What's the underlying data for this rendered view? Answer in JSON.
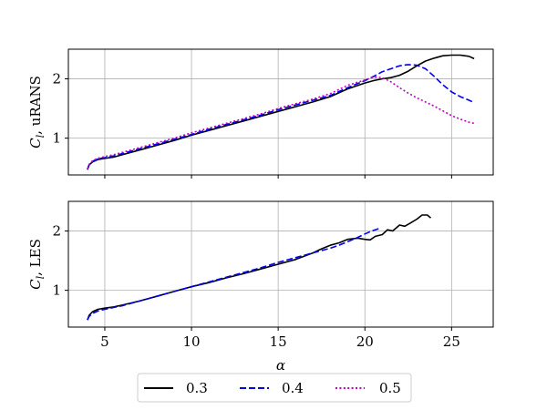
{
  "chart_data": [
    {
      "type": "line",
      "title": "",
      "xlabel": "",
      "ylabel_main": "C",
      "ylabel_sub": "l",
      "ylabel_rest": ", uRANS",
      "xlim": [
        2.9,
        27.4
      ],
      "ylim": [
        0.38,
        2.5
      ],
      "xticks": [
        5,
        10,
        15,
        20,
        25
      ],
      "xtick_labels_visible": false,
      "yticks": [
        1,
        2
      ],
      "ytick_labels": [
        "1",
        "2"
      ],
      "grid": true,
      "series": [
        {
          "name": "0.3",
          "color": "#000000",
          "dash": "solid",
          "x": [
            4.0,
            4.1,
            4.3,
            4.6,
            5.0,
            5.5,
            6.0,
            7.0,
            8.0,
            9.0,
            10.0,
            11.0,
            12.0,
            13.0,
            14.0,
            15.0,
            16.0,
            17.0,
            18.0,
            19.0,
            20.0,
            20.5,
            21.0,
            21.5,
            22.0,
            22.5,
            23.0,
            23.5,
            24.0,
            24.5,
            25.0,
            25.5,
            26.0,
            26.3
          ],
          "y": [
            0.47,
            0.55,
            0.6,
            0.64,
            0.66,
            0.68,
            0.72,
            0.8,
            0.88,
            0.96,
            1.05,
            1.13,
            1.21,
            1.29,
            1.37,
            1.45,
            1.53,
            1.61,
            1.7,
            1.83,
            1.93,
            1.97,
            2.0,
            2.02,
            2.06,
            2.13,
            2.22,
            2.3,
            2.35,
            2.39,
            2.4,
            2.4,
            2.38,
            2.34
          ]
        },
        {
          "name": "0.4",
          "color": "#0000ee",
          "dash": "dashed",
          "x": [
            4.0,
            4.1,
            4.3,
            4.6,
            5.0,
            5.5,
            6.0,
            7.0,
            8.0,
            9.0,
            10.0,
            11.0,
            12.0,
            13.0,
            14.0,
            15.0,
            16.0,
            17.0,
            18.0,
            19.0,
            20.0,
            20.5,
            21.0,
            21.5,
            22.0,
            22.5,
            23.0,
            23.5,
            24.0,
            24.5,
            25.0,
            25.5,
            26.0,
            26.3
          ],
          "y": [
            0.47,
            0.55,
            0.61,
            0.65,
            0.67,
            0.7,
            0.74,
            0.82,
            0.9,
            0.98,
            1.06,
            1.15,
            1.23,
            1.31,
            1.39,
            1.48,
            1.56,
            1.64,
            1.72,
            1.85,
            1.97,
            2.04,
            2.12,
            2.17,
            2.22,
            2.24,
            2.23,
            2.17,
            2.04,
            1.9,
            1.78,
            1.7,
            1.64,
            1.6
          ]
        },
        {
          "name": "0.5",
          "color": "#bf00bf",
          "dash": "dotted",
          "x": [
            4.0,
            4.1,
            4.3,
            4.6,
            5.0,
            5.5,
            6.0,
            7.0,
            8.0,
            9.0,
            10.0,
            11.0,
            12.0,
            13.0,
            14.0,
            15.0,
            16.0,
            17.0,
            18.0,
            19.0,
            20.0,
            20.5,
            21.0,
            21.5,
            22.0,
            22.5,
            23.0,
            24.0,
            25.0,
            25.5,
            26.0,
            26.3
          ],
          "y": [
            0.48,
            0.56,
            0.62,
            0.66,
            0.69,
            0.72,
            0.76,
            0.84,
            0.92,
            1.0,
            1.09,
            1.17,
            1.25,
            1.33,
            1.41,
            1.5,
            1.58,
            1.66,
            1.75,
            1.89,
            1.98,
            2.03,
            2.02,
            1.95,
            1.85,
            1.76,
            1.68,
            1.54,
            1.38,
            1.32,
            1.27,
            1.25
          ]
        }
      ]
    },
    {
      "type": "line",
      "title": "",
      "xlabel": "α",
      "ylabel_main": "C",
      "ylabel_sub": "l",
      "ylabel_rest": ", LES",
      "xlim": [
        2.9,
        27.4
      ],
      "ylim": [
        0.38,
        2.5
      ],
      "xticks": [
        5,
        10,
        15,
        20,
        25
      ],
      "xtick_labels": [
        "5",
        "10",
        "15",
        "20",
        "25"
      ],
      "xtick_labels_visible": true,
      "yticks": [
        1,
        2
      ],
      "ytick_labels": [
        "1",
        "2"
      ],
      "grid": true,
      "series": [
        {
          "name": "0.3",
          "color": "#000000",
          "dash": "solid",
          "x": [
            4.0,
            4.1,
            4.3,
            4.6,
            5.0,
            5.5,
            6.0,
            7.0,
            8.0,
            9.0,
            10.0,
            11.0,
            12.0,
            13.0,
            14.0,
            15.0,
            16.0,
            17.0,
            17.5,
            18.0,
            18.5,
            19.0,
            19.3,
            19.6,
            20.0,
            20.3,
            20.6,
            21.0,
            21.3,
            21.6,
            22.0,
            22.3,
            22.6,
            23.0,
            23.3,
            23.6,
            23.8
          ],
          "y": [
            0.5,
            0.58,
            0.64,
            0.68,
            0.7,
            0.72,
            0.75,
            0.82,
            0.9,
            0.98,
            1.06,
            1.13,
            1.21,
            1.28,
            1.36,
            1.44,
            1.52,
            1.63,
            1.7,
            1.76,
            1.8,
            1.86,
            1.87,
            1.88,
            1.86,
            1.85,
            1.91,
            1.94,
            2.02,
            2.0,
            2.1,
            2.08,
            2.13,
            2.2,
            2.27,
            2.27,
            2.22
          ]
        },
        {
          "name": "0.4",
          "color": "#0000ee",
          "dash": "dashed",
          "x": [
            4.0,
            4.1,
            4.3,
            4.6,
            5.0,
            5.5,
            6.0,
            7.0,
            8.0,
            9.0,
            10.0,
            11.0,
            12.0,
            13.0,
            14.0,
            15.0,
            16.0,
            17.0,
            18.0,
            18.5,
            19.0,
            19.5,
            20.0,
            20.4,
            20.8
          ],
          "y": [
            0.5,
            0.56,
            0.61,
            0.65,
            0.68,
            0.71,
            0.74,
            0.82,
            0.9,
            0.98,
            1.06,
            1.14,
            1.22,
            1.3,
            1.38,
            1.47,
            1.55,
            1.63,
            1.71,
            1.76,
            1.82,
            1.88,
            1.95,
            2.0,
            2.04
          ]
        }
      ]
    }
  ],
  "legend": {
    "placement": "bottom-center",
    "entries": [
      {
        "label": "0.3",
        "color": "#000000",
        "dash": "solid"
      },
      {
        "label": "0.4",
        "color": "#0000ee",
        "dash": "dashed"
      },
      {
        "label": "0.5",
        "color": "#bf00bf",
        "dash": "dotted"
      }
    ]
  }
}
